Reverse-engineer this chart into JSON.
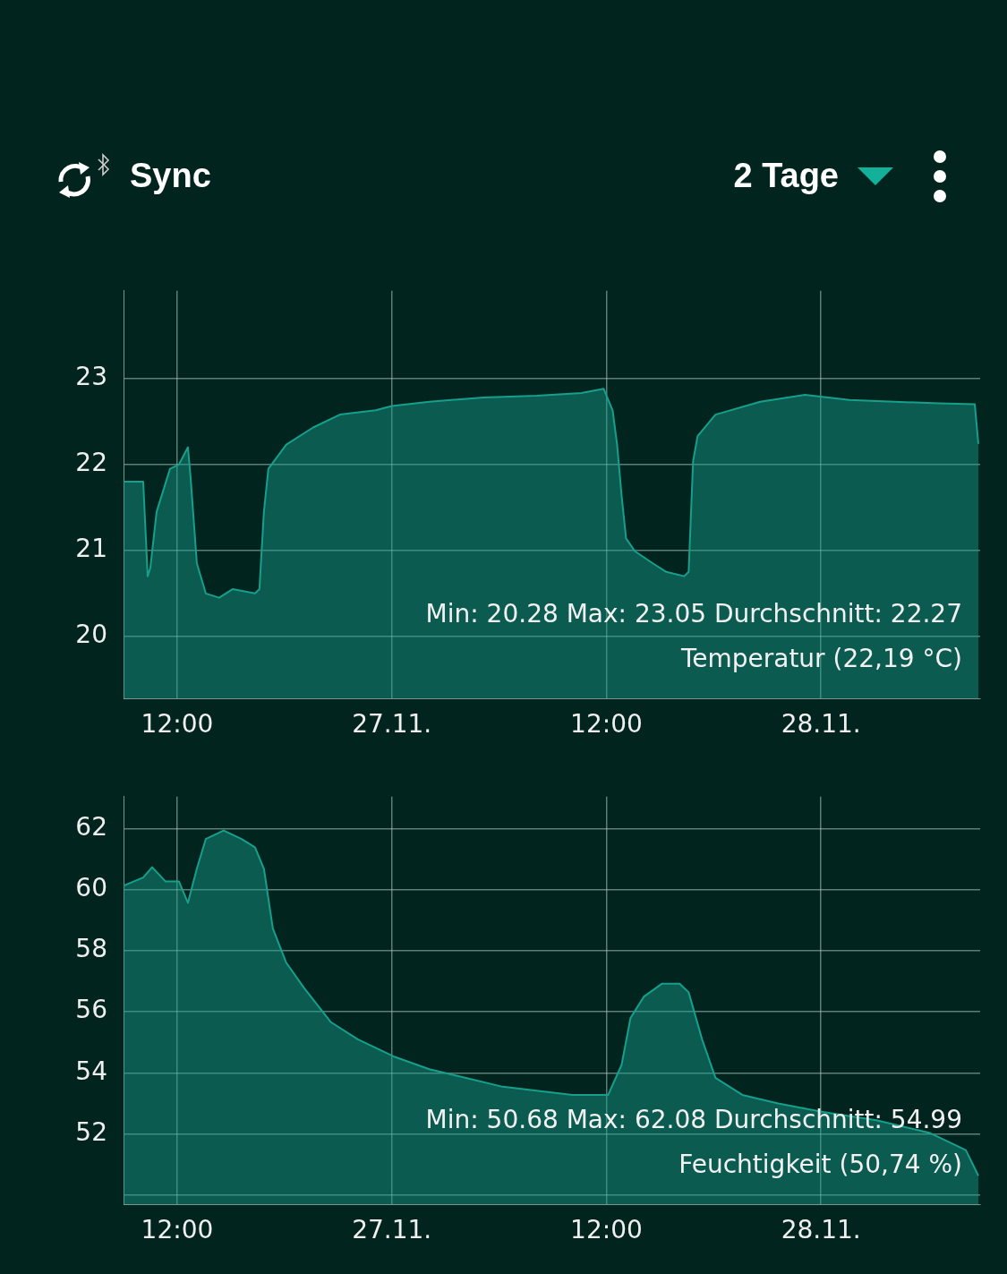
{
  "chart_data": [
    {
      "type": "other",
      "annotations": [
        "Sync",
        "2 Tage"
      ]
    },
    {
      "type": "area",
      "x": [
        "--11-26T09:00",
        "--11-26T10:06",
        "--11-26T10:21",
        "--11-26T10:30",
        "--11-26T10:51",
        "--11-26T11:36",
        "--11-26T12:06",
        "--11-26T12:36",
        "--11-26T12:45",
        "--11-26T13:06",
        "--11-26T13:36",
        "--11-26T14:21",
        "--11-26T15:06",
        "--11-26T16:21",
        "--11-26T16:36",
        "--11-26T16:51",
        "--11-26T17:06",
        "--11-26T18:06",
        "--11-26T19:36",
        "--11-26T21:06",
        "--11-26T23:06",
        "--11-27T00:00",
        "--11-27T02:06",
        "--11-27T05:06",
        "--11-27T08:06",
        "--11-27T10:36",
        "--11-27T11:51",
        "--11-27T12:21",
        "--11-27T12:36",
        "--11-27T12:51",
        "--11-27T13:06",
        "--11-27T13:36",
        "--11-27T14:36",
        "--11-27T15:21",
        "--11-27T16:21",
        "--11-27T16:36",
        "--11-27T16:51",
        "--11-27T17:06",
        "--11-27T18:06",
        "--11-27T20:36",
        "--11-27T23:06",
        "--11-28T01:36",
        "--11-28T04:06",
        "--11-28T06:36",
        "--11-28T08:36",
        "--11-28T08:48"
      ],
      "series": [
        {
          "color": "#16a08c",
          "values": [
            21.8,
            21.8,
            20.7,
            20.8,
            21.45,
            21.95,
            22.0,
            22.2,
            21.85,
            20.85,
            20.5,
            20.45,
            20.55,
            20.5,
            20.55,
            21.45,
            21.95,
            22.23,
            22.43,
            22.58,
            22.63,
            22.68,
            22.73,
            22.78,
            22.8,
            22.83,
            22.88,
            22.63,
            22.23,
            21.64,
            21.14,
            20.99,
            20.85,
            20.75,
            20.7,
            20.75,
            22.04,
            22.33,
            22.58,
            22.73,
            22.81,
            22.75,
            22.73,
            22.71,
            22.7,
            22.24
          ]
        }
      ],
      "xlim": [
        "--11-26T09:00",
        "--11-28T08:54"
      ],
      "xticks": [
        {
          "value": "--11-26T12:00",
          "label": "12:00"
        },
        {
          "value": "--11-27T00:00",
          "label": "27.11."
        },
        {
          "value": "--11-27T12:00",
          "label": "12:00"
        },
        {
          "value": "--11-28T00:00",
          "label": "28.11."
        }
      ],
      "ylim": [
        19.28,
        24.02
      ],
      "yticks": [
        20,
        21,
        22,
        23
      ],
      "grid": true,
      "legend": false,
      "annotations": [
        "Min: 20.28 Max: 23.05 Durchschnitt: 22.27",
        "Temperatur (22,19 °C)"
      ]
    },
    {
      "type": "area",
      "x": [
        "--11-26T09:00",
        "--11-26T10:06",
        "--11-26T10:36",
        "--11-26T11:21",
        "--11-26T12:06",
        "--11-26T12:36",
        "--11-26T13:06",
        "--11-26T13:36",
        "--11-26T14:36",
        "--11-26T15:36",
        "--11-26T16:21",
        "--11-26T16:51",
        "--11-26T17:21",
        "--11-26T18:06",
        "--11-26T19:06",
        "--11-26T20:36",
        "--11-26T22:06",
        "--11-27T00:06",
        "--11-27T02:06",
        "--11-27T04:06",
        "--11-27T06:06",
        "--11-27T08:06",
        "--11-27T10:06",
        "--11-27T12:06",
        "--11-27T12:51",
        "--11-27T13:21",
        "--11-27T14:06",
        "--11-27T15:06",
        "--11-27T16:06",
        "--11-27T16:36",
        "--11-27T17:21",
        "--11-27T18:06",
        "--11-27T19:36",
        "--11-27T21:36",
        "--11-28T00:06",
        "--11-28T03:06",
        "--11-28T06:06",
        "--11-28T08:06",
        "--11-28T08:48"
      ],
      "series": [
        {
          "color": "#16a08c",
          "values": [
            60.13,
            60.4,
            60.74,
            60.27,
            60.27,
            59.57,
            60.69,
            61.66,
            61.94,
            61.66,
            61.39,
            60.69,
            58.73,
            57.61,
            56.78,
            55.66,
            55.1,
            54.54,
            54.12,
            53.84,
            53.56,
            53.42,
            53.28,
            53.28,
            54.26,
            55.8,
            56.5,
            56.92,
            56.92,
            56.64,
            55.1,
            53.84,
            53.28,
            53.0,
            52.72,
            52.45,
            52.03,
            51.47,
            50.63
          ]
        }
      ],
      "xlim": [
        "--11-26T09:00",
        "--11-28T08:54"
      ],
      "xticks": [
        {
          "value": "--11-26T12:00",
          "label": "12:00"
        },
        {
          "value": "--11-27T00:00",
          "label": "27.11."
        },
        {
          "value": "--11-27T12:00",
          "label": "12:00"
        },
        {
          "value": "--11-28T00:00",
          "label": "28.11."
        }
      ],
      "ylim": [
        49.7,
        63.05
      ],
      "yticks": [
        {
          "value": 50,
          "label": null
        },
        52,
        54,
        56,
        58,
        60,
        62
      ],
      "grid": true,
      "legend": false,
      "annotations": [
        "Min: 50.68 Max: 62.08 Durchschnitt: 54.99",
        "Feuchtigkeit (50,74 %)"
      ]
    }
  ]
}
